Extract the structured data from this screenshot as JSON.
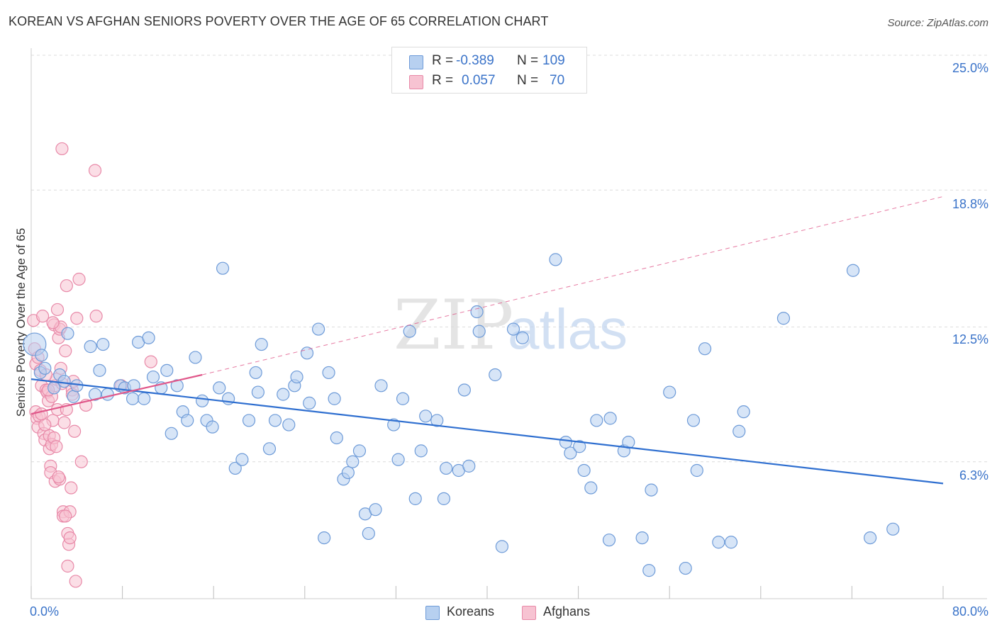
{
  "title": "KOREAN VS AFGHAN SENIORS POVERTY OVER THE AGE OF 65 CORRELATION CHART",
  "source": "Source: ZipAtlas.com",
  "legend_top": {
    "rows": [
      {
        "r_label": "R =",
        "r_value": "-0.389",
        "n_label": "N =",
        "n_value": "109"
      },
      {
        "r_label": "R =",
        "r_value": "0.057",
        "n_label": "N =",
        "n_value": "70"
      }
    ]
  },
  "legend_bottom": [
    "Koreans",
    "Afghans"
  ],
  "watermark": {
    "part1": "ZIP",
    "part2": "atlas"
  },
  "colors": {
    "koreans_fill": "#b7d0f0",
    "koreans_stroke": "#6e9bd8",
    "koreans_line": "#2f6fd0",
    "afghans_fill": "#f7c3d2",
    "afghans_stroke": "#e889a8",
    "afghans_line": "#e0578a",
    "tick_text": "#3a73c9",
    "grid": "#dcdcdc"
  },
  "chart_data": {
    "type": "scatter",
    "title": "KOREAN VS AFGHAN SENIORS POVERTY OVER THE AGE OF 65 CORRELATION CHART",
    "xlabel": "",
    "ylabel": "Seniors Poverty Over the Age of 65",
    "xlim": [
      0,
      80
    ],
    "ylim": [
      0,
      25
    ],
    "x_tick_labels": [
      "0.0%",
      "80.0%"
    ],
    "y_ticks": [
      6.3,
      12.5,
      18.8,
      25.0
    ],
    "y_tick_labels": [
      "6.3%",
      "12.5%",
      "18.8%",
      "25.0%"
    ],
    "grid": "horizontal dashed",
    "legend_position": "top-center and bottom-center",
    "series": [
      {
        "name": "Koreans",
        "R": -0.389,
        "N": 109,
        "trend": {
          "x": [
            0,
            80
          ],
          "y": [
            10.1,
            5.3
          ],
          "style": "solid"
        },
        "points": [
          [
            0.3,
            11.7
          ],
          [
            0.8,
            10.4
          ],
          [
            1.2,
            10.6
          ],
          [
            2.0,
            9.7
          ],
          [
            2.5,
            10.3
          ],
          [
            3.2,
            12.2
          ],
          [
            3.7,
            9.3
          ],
          [
            4.0,
            9.8
          ],
          [
            5.2,
            11.6
          ],
          [
            5.6,
            9.4
          ],
          [
            6.3,
            11.7
          ],
          [
            6.7,
            9.4
          ],
          [
            7.8,
            9.8
          ],
          [
            8.2,
            9.7
          ],
          [
            8.9,
            9.2
          ],
          [
            9.4,
            11.8
          ],
          [
            9.9,
            9.2
          ],
          [
            10.3,
            12.0
          ],
          [
            10.7,
            10.2
          ],
          [
            11.4,
            9.7
          ],
          [
            11.9,
            10.5
          ],
          [
            12.3,
            7.6
          ],
          [
            12.8,
            9.8
          ],
          [
            13.3,
            8.6
          ],
          [
            13.7,
            8.2
          ],
          [
            14.4,
            11.1
          ],
          [
            15.0,
            9.1
          ],
          [
            15.4,
            8.2
          ],
          [
            15.9,
            7.9
          ],
          [
            16.5,
            9.7
          ],
          [
            16.8,
            15.2
          ],
          [
            17.3,
            9.2
          ],
          [
            17.9,
            6.0
          ],
          [
            18.5,
            6.4
          ],
          [
            19.1,
            8.2
          ],
          [
            19.7,
            10.4
          ],
          [
            20.2,
            11.7
          ],
          [
            19.9,
            9.5
          ],
          [
            20.9,
            6.9
          ],
          [
            21.4,
            8.2
          ],
          [
            22.1,
            9.4
          ],
          [
            22.6,
            8.0
          ],
          [
            23.1,
            9.8
          ],
          [
            23.3,
            10.2
          ],
          [
            24.2,
            11.3
          ],
          [
            24.4,
            9.0
          ],
          [
            25.2,
            12.4
          ],
          [
            25.7,
            2.8
          ],
          [
            26.1,
            10.4
          ],
          [
            26.6,
            9.2
          ],
          [
            26.8,
            7.4
          ],
          [
            27.4,
            5.5
          ],
          [
            27.8,
            5.8
          ],
          [
            28.2,
            6.3
          ],
          [
            28.8,
            6.8
          ],
          [
            29.3,
            3.9
          ],
          [
            29.6,
            3.0
          ],
          [
            30.2,
            4.1
          ],
          [
            30.7,
            9.8
          ],
          [
            31.8,
            8.0
          ],
          [
            32.2,
            6.4
          ],
          [
            32.6,
            9.2
          ],
          [
            33.2,
            12.3
          ],
          [
            33.7,
            4.6
          ],
          [
            34.2,
            6.8
          ],
          [
            34.6,
            8.4
          ],
          [
            35.6,
            8.2
          ],
          [
            36.2,
            4.6
          ],
          [
            36.4,
            6.0
          ],
          [
            37.5,
            5.9
          ],
          [
            38.0,
            9.6
          ],
          [
            38.4,
            6.1
          ],
          [
            39.1,
            13.2
          ],
          [
            39.3,
            12.3
          ],
          [
            40.7,
            10.3
          ],
          [
            41.3,
            2.4
          ],
          [
            42.3,
            12.4
          ],
          [
            43.1,
            12.0
          ],
          [
            46.0,
            15.6
          ],
          [
            46.9,
            7.2
          ],
          [
            47.3,
            6.7
          ],
          [
            48.1,
            7.0
          ],
          [
            48.5,
            5.9
          ],
          [
            49.1,
            5.1
          ],
          [
            49.6,
            8.2
          ],
          [
            50.7,
            2.7
          ],
          [
            50.8,
            8.3
          ],
          [
            52.0,
            6.8
          ],
          [
            52.4,
            7.2
          ],
          [
            53.6,
            2.8
          ],
          [
            54.4,
            5.0
          ],
          [
            54.2,
            1.3
          ],
          [
            56.0,
            9.5
          ],
          [
            57.4,
            1.4
          ],
          [
            58.1,
            8.2
          ],
          [
            58.4,
            5.9
          ],
          [
            59.1,
            11.5
          ],
          [
            60.3,
            2.6
          ],
          [
            61.4,
            2.6
          ],
          [
            62.1,
            7.7
          ],
          [
            62.5,
            8.6
          ],
          [
            66.0,
            12.9
          ],
          [
            72.1,
            15.1
          ],
          [
            73.6,
            2.8
          ],
          [
            75.6,
            3.2
          ],
          [
            0.9,
            11.2
          ],
          [
            6.0,
            10.5
          ],
          [
            9.0,
            9.8
          ],
          [
            2.9,
            10.0
          ]
        ]
      },
      {
        "name": "Afghans",
        "R": 0.057,
        "N": 70,
        "trend": {
          "x": [
            0,
            15
          ],
          "y": [
            8.5,
            10.3
          ],
          "style": "solid",
          "extended": {
            "x": [
              15,
              80
            ],
            "y": [
              10.3,
              18.5
            ],
            "style": "dashed"
          }
        },
        "points": [
          [
            0.2,
            12.8
          ],
          [
            0.3,
            11.5
          ],
          [
            0.4,
            10.8
          ],
          [
            0.4,
            8.6
          ],
          [
            0.5,
            8.3
          ],
          [
            0.6,
            7.9
          ],
          [
            0.7,
            8.4
          ],
          [
            0.8,
            10.5
          ],
          [
            0.9,
            9.8
          ],
          [
            1.0,
            13.0
          ],
          [
            1.1,
            7.6
          ],
          [
            1.2,
            7.3
          ],
          [
            1.3,
            9.6
          ],
          [
            1.4,
            9.5
          ],
          [
            1.5,
            9.1
          ],
          [
            1.6,
            7.5
          ],
          [
            1.6,
            6.9
          ],
          [
            1.7,
            6.1
          ],
          [
            1.7,
            5.8
          ],
          [
            1.8,
            9.3
          ],
          [
            1.8,
            7.1
          ],
          [
            1.9,
            8.2
          ],
          [
            2.0,
            7.4
          ],
          [
            2.0,
            12.6
          ],
          [
            2.1,
            5.4
          ],
          [
            2.1,
            9.8
          ],
          [
            2.2,
            10.1
          ],
          [
            2.3,
            13.3
          ],
          [
            2.3,
            8.7
          ],
          [
            2.4,
            12.0
          ],
          [
            2.5,
            12.4
          ],
          [
            2.5,
            5.5
          ],
          [
            2.6,
            12.5
          ],
          [
            2.6,
            10.6
          ],
          [
            2.7,
            9.9
          ],
          [
            2.8,
            4.0
          ],
          [
            2.8,
            3.8
          ],
          [
            2.9,
            8.1
          ],
          [
            3.0,
            11.4
          ],
          [
            3.1,
            8.7
          ],
          [
            3.1,
            14.4
          ],
          [
            3.2,
            3.0
          ],
          [
            3.3,
            2.5
          ],
          [
            3.4,
            2.8
          ],
          [
            3.4,
            4.0
          ],
          [
            3.5,
            5.1
          ],
          [
            3.6,
            9.6
          ],
          [
            3.7,
            10.0
          ],
          [
            3.8,
            7.7
          ],
          [
            3.9,
            0.8
          ],
          [
            4.0,
            12.9
          ],
          [
            4.2,
            14.7
          ],
          [
            4.4,
            6.3
          ],
          [
            5.6,
            19.7
          ],
          [
            5.7,
            13.0
          ],
          [
            7.9,
            9.8
          ],
          [
            10.5,
            10.9
          ],
          [
            2.7,
            20.7
          ],
          [
            1.5,
            9.6
          ],
          [
            3.2,
            1.5
          ],
          [
            0.6,
            11.1
          ],
          [
            1.2,
            8.0
          ],
          [
            2.4,
            5.6
          ],
          [
            3.6,
            9.4
          ],
          [
            4.8,
            8.9
          ],
          [
            1.9,
            12.7
          ],
          [
            3.0,
            3.8
          ],
          [
            0.9,
            8.5
          ],
          [
            2.2,
            7.0
          ],
          [
            1.3,
            10.3
          ]
        ]
      }
    ]
  }
}
